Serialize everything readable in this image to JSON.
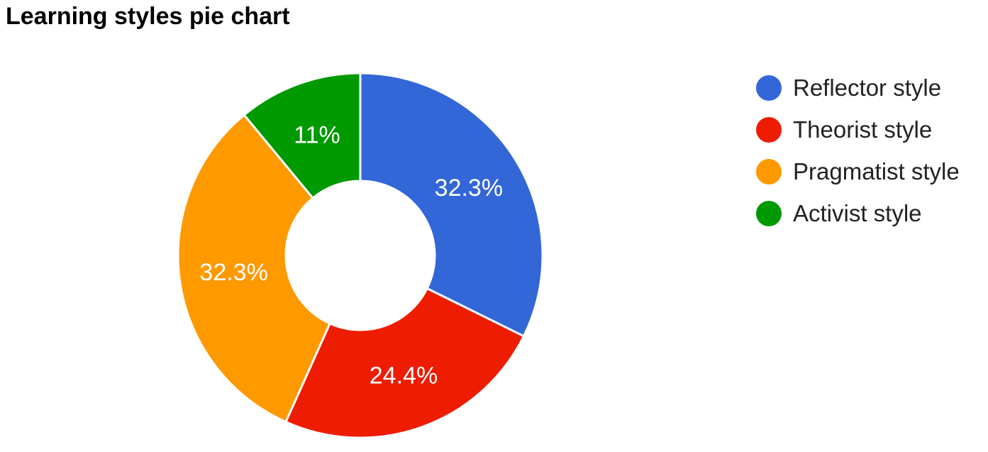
{
  "chart_data": {
    "type": "pie",
    "donut": true,
    "title": "Learning styles pie chart",
    "legend_position": "right",
    "categories": [
      "Reflector style",
      "Theorist style",
      "Pragmatist style",
      "Activist style"
    ],
    "values": [
      32.3,
      24.4,
      32.3,
      11
    ],
    "labels": [
      "32.3%",
      "24.4%",
      "32.3%",
      "11%"
    ],
    "colors": [
      "#3366d6",
      "#ee1c00",
      "#ff9900",
      "#009900"
    ]
  }
}
